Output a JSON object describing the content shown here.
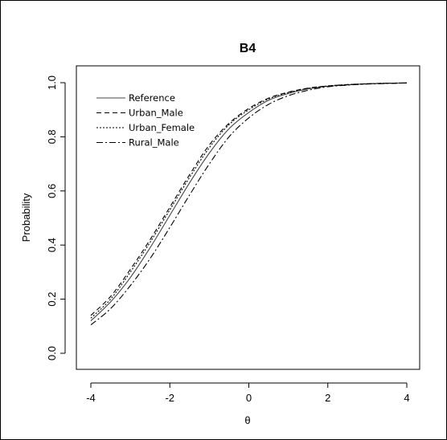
{
  "chart_data": {
    "type": "line",
    "title": "B4",
    "xlabel": "θ",
    "ylabel": "Probability",
    "xlim": [
      -4,
      4
    ],
    "ylim": [
      0,
      1
    ],
    "xticks": [
      -4,
      -2,
      0,
      2,
      4
    ],
    "xtick_labels": [
      "-4",
      "-2",
      "0",
      "2",
      "4"
    ],
    "yticks": [
      0,
      0.2,
      0.4,
      0.6,
      0.8,
      1
    ],
    "ytick_labels": [
      "0.0",
      "0.2",
      "0.4",
      "0.6",
      "0.8",
      "1.0"
    ],
    "grid": false,
    "legend_position": "top-left",
    "x": [
      -4,
      -3.5,
      -3,
      -2.5,
      -2,
      -1.5,
      -1,
      -0.5,
      0,
      0.5,
      1,
      1.5,
      2,
      2.5,
      3,
      3.5,
      4
    ],
    "series": [
      {
        "name": "Reference",
        "line_style": "solid",
        "values": [
          0.12,
          0.19,
          0.28,
          0.39,
          0.51,
          0.63,
          0.74,
          0.83,
          0.89,
          0.935,
          0.96,
          0.977,
          0.987,
          0.992,
          0.996,
          0.998,
          0.999
        ]
      },
      {
        "name": "Urban_Male",
        "line_style": "dashed",
        "values": [
          0.14,
          0.21,
          0.31,
          0.42,
          0.54,
          0.66,
          0.77,
          0.85,
          0.905,
          0.943,
          0.965,
          0.98,
          0.988,
          0.993,
          0.996,
          0.998,
          0.999
        ]
      },
      {
        "name": "Urban_Female",
        "line_style": "dotted",
        "values": [
          0.13,
          0.2,
          0.3,
          0.41,
          0.53,
          0.65,
          0.76,
          0.845,
          0.9,
          0.94,
          0.963,
          0.979,
          0.988,
          0.993,
          0.996,
          0.998,
          0.999
        ]
      },
      {
        "name": "Rural_Male",
        "line_style": "dashdot",
        "values": [
          0.105,
          0.165,
          0.25,
          0.35,
          0.465,
          0.585,
          0.7,
          0.8,
          0.87,
          0.92,
          0.952,
          0.972,
          0.985,
          0.991,
          0.995,
          0.997,
          0.999
        ]
      }
    ]
  }
}
